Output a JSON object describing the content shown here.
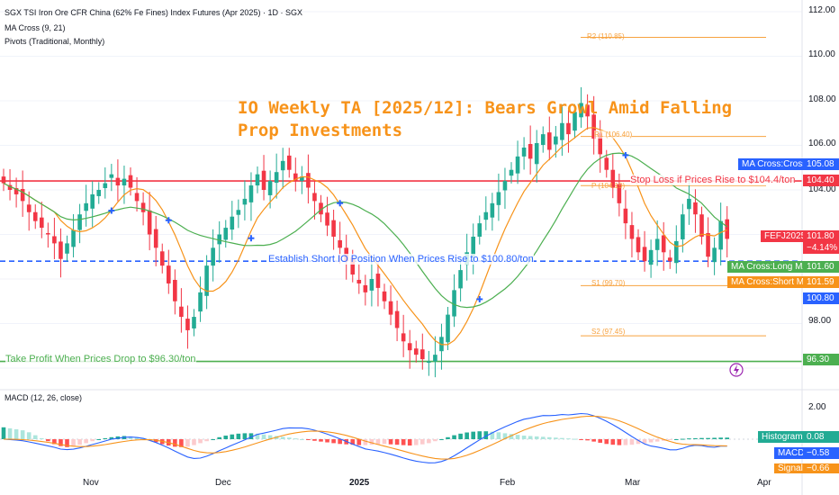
{
  "header": {
    "symbol_line": "SGX TSI Iron Ore CFR China (62% Fe Fines) Index Futures (Apr 2025) · 1D · SGX",
    "indicator_1": "MA Cross (9, 21)",
    "indicator_2": "Pivots (Traditional, Monthly)"
  },
  "idea_title_line1": "IO Weekly TA [2025/12]: Bears Growl Amid Falling",
  "idea_title_line2": "Prop Investments",
  "annotations": {
    "stop_loss": "Stop Loss if Prices Rise to $104.4/ton",
    "entry": "Establish Short IO Position When Prices Rise to $100.80/ton",
    "take_profit": "Take Profit When Prices Drop to $96.30/ton"
  },
  "pivots": {
    "r2": "R2 (110.85)",
    "r1": "R1 (106.40)",
    "p": "P (104.19)",
    "s1": "S1 (99.70)",
    "s2": "S2 (97.45)"
  },
  "price_tags": {
    "ma_cross": {
      "label": "MA Cross:Cross",
      "value": "105.08"
    },
    "stop_loss": "104.40",
    "symbol": {
      "label": "FEFJ2025",
      "value": "101.80",
      "change": "−4.14%"
    },
    "long_ma": {
      "label": "MA Cross:Long MA",
      "value": "101.60"
    },
    "short_ma": {
      "label": "MA Cross:Short MA",
      "value": "101.59"
    },
    "entry": "100.80",
    "take_profit": "96.30"
  },
  "macd": {
    "title": "MACD (12, 26, close)",
    "histogram": {
      "label": "Histogram",
      "value": "0.08"
    },
    "macd": {
      "label": "MACD",
      "value": "−0.58"
    },
    "signal": {
      "label": "Signal",
      "value": "−0.66"
    },
    "tick": "2.00"
  },
  "colors": {
    "up": "#22ab94",
    "down": "#f23645",
    "short_ma": "#f7931a",
    "long_ma": "#4caf50",
    "cross": "#2962ff",
    "stop_loss": "#f23645",
    "entry": "#2962ff",
    "take_profit": "#4caf50",
    "pivot": "#f7a23f"
  },
  "chart_data": {
    "type": "candlestick",
    "y_ticks": [
      "112.00",
      "110.00",
      "108.00",
      "106.00",
      "104.00",
      "98.00"
    ],
    "x_ticks": [
      "Nov",
      "Dec",
      "2025",
      "Feb",
      "Mar",
      "Apr"
    ],
    "levels": {
      "stop_loss": 104.4,
      "entry": 100.8,
      "take_profit": 96.3,
      "r2": 110.85,
      "r1": 106.4,
      "p": 104.19,
      "s1": 99.7,
      "s2": 97.45
    },
    "closes": [
      104.3,
      104.0,
      103.8,
      103.5,
      103.0,
      102.6,
      102.3,
      102.0,
      101.6,
      100.9,
      101.6,
      102.2,
      102.9,
      103.4,
      103.8,
      104.0,
      104.3,
      104.7,
      104.2,
      104.5,
      104.1,
      103.5,
      103.0,
      102.0,
      101.4,
      100.6,
      99.8,
      99.0,
      98.3,
      97.7,
      98.3,
      99.4,
      100.6,
      101.4,
      102.0,
      102.3,
      102.8,
      103.1,
      103.6,
      104.2,
      104.7,
      104.0,
      104.4,
      104.8,
      105.3,
      104.9,
      104.4,
      104.6,
      104.1,
      103.5,
      102.9,
      102.4,
      101.9,
      101.4,
      100.8,
      100.2,
      99.8,
      99.4,
      100.0,
      99.6,
      99.0,
      98.4,
      97.8,
      97.2,
      96.8,
      96.6,
      96.4,
      96.3,
      96.6,
      97.4,
      98.4,
      99.5,
      100.4,
      101.2,
      101.9,
      102.5,
      103.0,
      103.4,
      103.9,
      104.4,
      104.9,
      105.5,
      105.9,
      105.4,
      106.1,
      106.5,
      105.8,
      106.4,
      107.0,
      106.5,
      107.5,
      107.9,
      107.3,
      106.3,
      105.6,
      104.9,
      104.1,
      103.4,
      102.5,
      101.8,
      101.2,
      100.8,
      101.3,
      101.8,
      101.2,
      100.8,
      101.7,
      102.9,
      103.6,
      102.9,
      101.9,
      101.0,
      101.4,
      102.6,
      101.8
    ],
    "macd_hist": [
      0.6,
      0.55,
      0.5,
      0.45,
      0.35,
      0.2,
      0.05,
      -0.1,
      -0.25,
      -0.35,
      -0.4,
      -0.35,
      -0.28,
      -0.2,
      -0.1,
      0.0,
      0.05,
      0.1,
      0.14,
      0.16,
      0.14,
      0.1,
      0.05,
      -0.05,
      -0.15,
      -0.25,
      -0.32,
      -0.38,
      -0.4,
      -0.38,
      -0.3,
      -0.2,
      -0.1,
      0.0,
      0.1,
      0.18,
      0.24,
      0.28,
      0.3,
      0.3,
      0.28,
      0.24,
      0.2,
      0.16,
      0.12,
      0.08,
      0.04,
      0.0,
      -0.04,
      -0.08,
      -0.12,
      -0.16,
      -0.2,
      -0.24,
      -0.26,
      -0.28,
      -0.3,
      -0.3,
      -0.28,
      -0.26,
      -0.24,
      -0.26,
      -0.28,
      -0.3,
      -0.32,
      -0.3,
      -0.26,
      -0.2,
      -0.1,
      0.0,
      0.1,
      0.2,
      0.28,
      0.34,
      0.38,
      0.4,
      0.4,
      0.38,
      0.35,
      0.3,
      0.26,
      0.22,
      0.18,
      0.16,
      0.14,
      0.12,
      0.1,
      0.08,
      0.06,
      0.04,
      0.02,
      -0.02,
      -0.06,
      -0.12,
      -0.18,
      -0.24,
      -0.28,
      -0.3,
      -0.3,
      -0.28,
      -0.24,
      -0.2,
      -0.16,
      -0.12,
      -0.08,
      -0.04,
      0.0,
      0.02,
      0.04,
      0.05,
      0.06,
      0.06,
      0.07,
      0.08,
      0.08
    ]
  }
}
